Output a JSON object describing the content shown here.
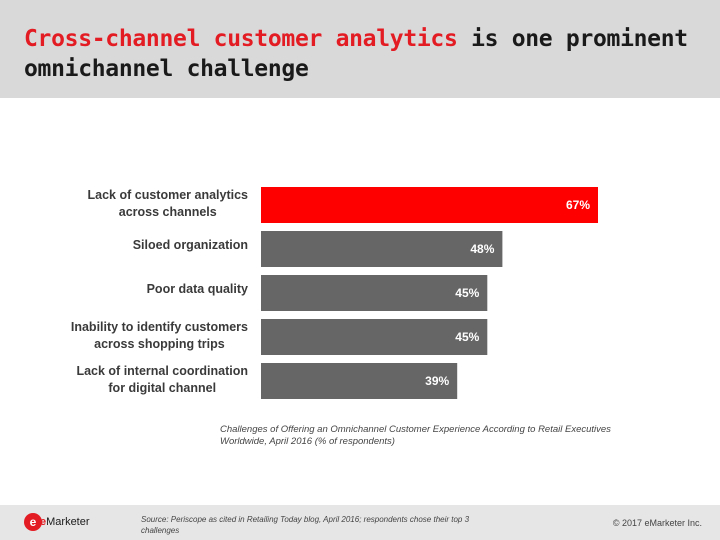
{
  "header": {
    "title_highlight": "Cross-channel customer analytics",
    "title_rest": " is one prominent omnichannel challenge"
  },
  "chart_data": {
    "type": "bar",
    "orientation": "horizontal",
    "categories": [
      "Lack of customer analytics\nacross channels",
      "Siloed organization",
      "Poor data quality",
      "Inability to identify customers\nacross shopping trips",
      "Lack of internal coordination\nfor digital channel"
    ],
    "values": [
      67,
      48,
      45,
      45,
      39
    ],
    "value_labels": [
      "67%",
      "48%",
      "45%",
      "45%",
      "39%"
    ],
    "highlight_index": 0,
    "colors": {
      "highlight": "#ff0000",
      "bar": "#666666",
      "label": "#ffffff"
    },
    "title": "Challenges of Offering an Omnichannel Customer Experience According to Retail Executives Worldwide, April 2016 (% of respondents)",
    "xlim": [
      0,
      100
    ],
    "grid": false,
    "legend": "none"
  },
  "footer": {
    "logo_mark": "e",
    "logo_e": "e",
    "logo_rest": "Marketer",
    "source": "Source: Periscope as cited in Retailing Today blog, April 2016; respondents chose their top 3 challenges",
    "copyright": "© 2017 eMarketer Inc."
  }
}
